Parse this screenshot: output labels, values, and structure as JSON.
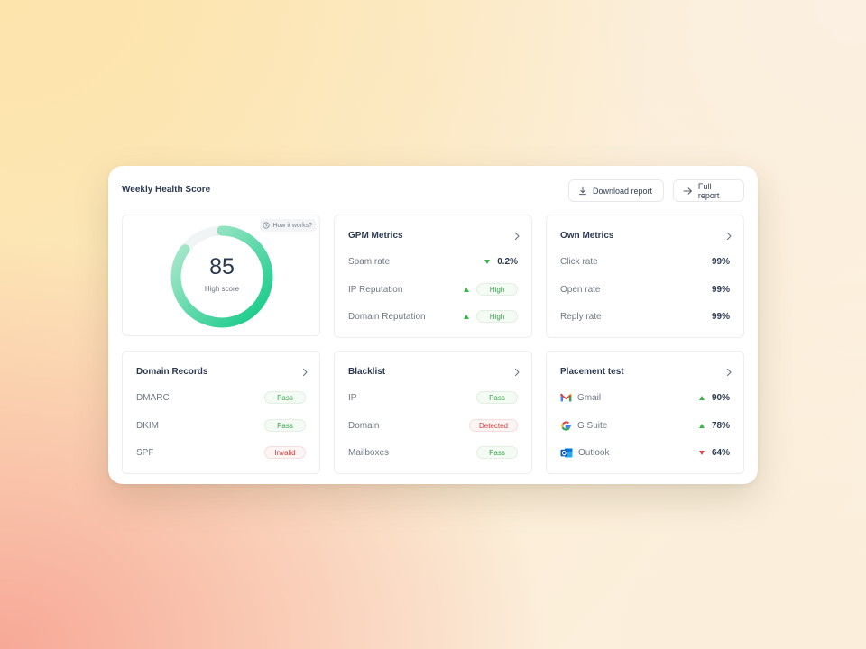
{
  "header": {
    "title": "Weekly Health Score",
    "download_label": "Download report",
    "full_label": "Full report"
  },
  "score": {
    "value": "85",
    "label": "High score",
    "how_label": "How it works?",
    "fraction": 0.85,
    "colors": {
      "start": "#0dc986",
      "end": "#b9ead3",
      "track": "#f1f4f4"
    }
  },
  "gpm": {
    "title": "GPM Metrics",
    "rows": [
      {
        "label": "Spam rate",
        "trend": "down",
        "value": "0.2%"
      },
      {
        "label": "IP Reputation",
        "trend": "up",
        "value": "High"
      },
      {
        "label": "Domain Reputation",
        "trend": "up",
        "value": "High"
      }
    ]
  },
  "own": {
    "title": "Own Metrics",
    "rows": [
      {
        "label": "Click rate",
        "value": "99%"
      },
      {
        "label": "Open rate",
        "value": "99%"
      },
      {
        "label": "Reply rate",
        "value": "99%"
      }
    ]
  },
  "domain": {
    "title": "Domain Records",
    "rows": [
      {
        "label": "DMARC",
        "status": "Pass"
      },
      {
        "label": "DKIM",
        "status": "Pass"
      },
      {
        "label": "SPF",
        "status": "Invalid"
      }
    ]
  },
  "blacklist": {
    "title": "Blacklist",
    "rows": [
      {
        "label": "IP",
        "status": "Pass"
      },
      {
        "label": "Domain",
        "status": "Detected"
      },
      {
        "label": "Mailboxes",
        "status": "Pass"
      }
    ]
  },
  "placement": {
    "title": "Placement test",
    "rows": [
      {
        "label": "Gmail",
        "icon": "gmail-icon",
        "trend": "up",
        "value": "90%"
      },
      {
        "label": "G Suite",
        "icon": "google-icon",
        "trend": "up",
        "value": "78%"
      },
      {
        "label": "Outlook",
        "icon": "outlook-icon",
        "trend": "down",
        "value": "64%"
      }
    ]
  },
  "colors": {
    "green": "#3ab54a",
    "red": "#e0444c",
    "text": "#2c3a4f"
  }
}
